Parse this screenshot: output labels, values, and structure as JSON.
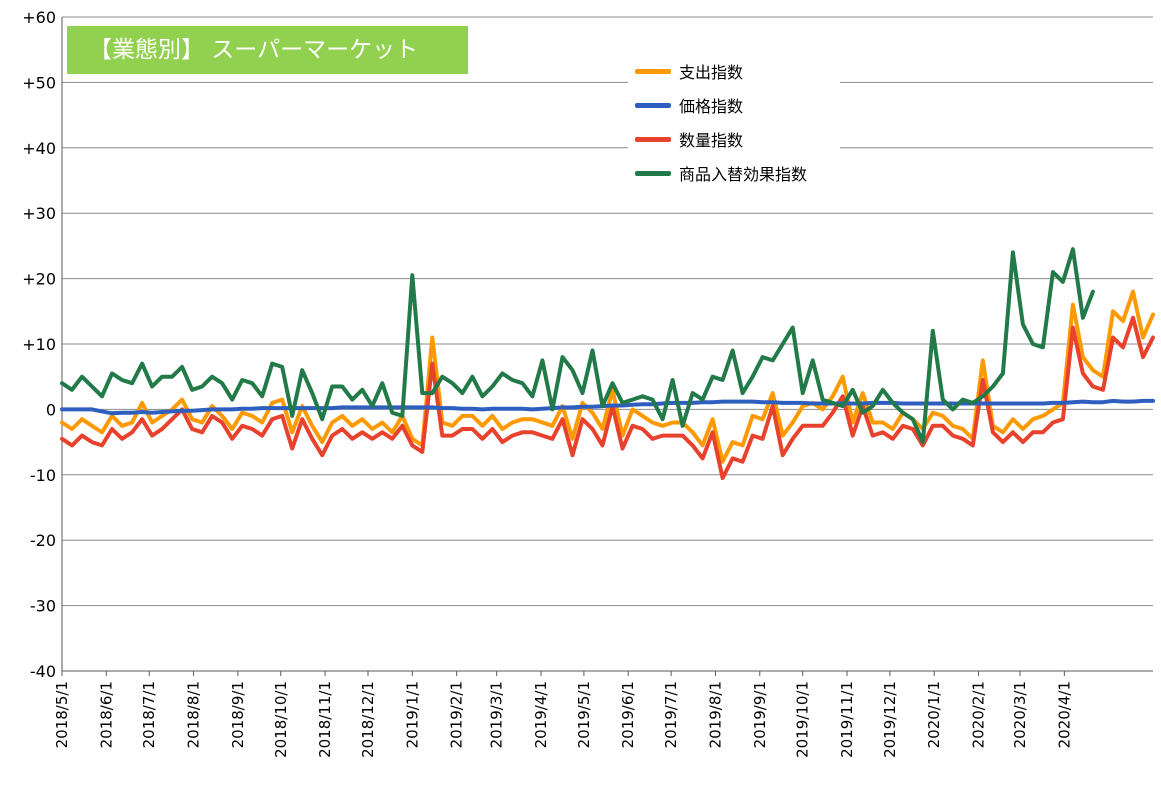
{
  "title": "【業態別】 スーパーマーケット",
  "chart_data": {
    "type": "line",
    "title": "【業態別】 スーパーマーケット",
    "xlabel": "",
    "ylabel": "",
    "ylim": [
      -40,
      60
    ],
    "y_tick_labels": [
      "+60",
      "+50",
      "+40",
      "+30",
      "+20",
      "+10",
      "0",
      "-10",
      "-20",
      "-30",
      "-40"
    ],
    "x_tick_labels": [
      "2018/5/1",
      "2018/6/1",
      "2018/7/1",
      "2018/8/1",
      "2018/9/1",
      "2018/10/1",
      "2018/11/1",
      "2018/12/1",
      "2019/1/1",
      "2019/2/1",
      "2019/3/1",
      "2019/4/1",
      "2019/5/1",
      "2019/6/1",
      "2019/7/1",
      "2019/8/1",
      "2019/9/1",
      "2019/10/1",
      "2019/11/1",
      "2019/12/1",
      "2020/1/1",
      "2020/2/1",
      "2020/3/1",
      "2020/4/1"
    ],
    "x_start": "2018/5/1",
    "x_step_days": 7,
    "grid": "horizontal",
    "legend_position": "top-center",
    "series": [
      {
        "name": "支出指数",
        "color": "#ff9900",
        "values": [
          -2.0,
          -3.0,
          -1.5,
          -2.5,
          -3.5,
          -1.0,
          -2.5,
          -2.0,
          1.0,
          -2.0,
          -1.0,
          0.0,
          1.5,
          -1.5,
          -2.0,
          0.5,
          -1.0,
          -3.0,
          -0.5,
          -1.0,
          -2.0,
          1.0,
          1.5,
          -3.5,
          0.5,
          -2.5,
          -5.0,
          -2.0,
          -1.0,
          -2.5,
          -1.5,
          -3.0,
          -2.0,
          -3.5,
          -1.0,
          -4.5,
          -5.5,
          11.0,
          -2.0,
          -2.5,
          -1.0,
          -1.0,
          -2.5,
          -1.0,
          -3.0,
          -2.0,
          -1.5,
          -1.5,
          -2.0,
          -2.5,
          0.5,
          -4.5,
          1.0,
          -0.5,
          -3.0,
          3.0,
          -4.0,
          0.0,
          -1.0,
          -2.0,
          -2.5,
          -2.0,
          -2.0,
          -3.5,
          -5.5,
          -1.5,
          -8.0,
          -5.0,
          -5.5,
          -1.0,
          -1.5,
          2.5,
          -4.0,
          -2.0,
          0.5,
          1.0,
          0.0,
          2.0,
          5.0,
          -2.0,
          2.5,
          -2.0,
          -2.0,
          -3.0,
          -0.5,
          -1.5,
          -3.0,
          -0.5,
          -1.0,
          -2.5,
          -3.0,
          -4.5,
          7.5,
          -2.5,
          -3.5,
          -1.5,
          -3.0,
          -1.5,
          -1.0,
          0.0,
          1.0,
          16.0,
          8.0,
          6.0,
          5.0,
          15.0,
          13.5,
          18.0,
          11.0,
          14.5
        ]
      },
      {
        "name": "価格指数",
        "color": "#2e5fbf",
        "values": [
          0.0,
          0.0,
          0.0,
          0.0,
          -0.3,
          -0.6,
          -0.5,
          -0.5,
          -0.4,
          -0.5,
          -0.4,
          -0.3,
          -0.2,
          -0.2,
          -0.1,
          0.0,
          0.0,
          0.0,
          0.1,
          0.1,
          0.2,
          0.2,
          0.2,
          0.2,
          0.2,
          0.2,
          0.2,
          0.2,
          0.3,
          0.3,
          0.3,
          0.3,
          0.3,
          0.3,
          0.3,
          0.3,
          0.3,
          0.3,
          0.2,
          0.2,
          0.1,
          0.1,
          0.0,
          0.1,
          0.1,
          0.1,
          0.1,
          0.0,
          0.1,
          0.2,
          0.3,
          0.3,
          0.4,
          0.4,
          0.5,
          0.6,
          0.6,
          0.7,
          0.8,
          0.8,
          0.9,
          1.0,
          1.0,
          1.0,
          1.1,
          1.1,
          1.2,
          1.2,
          1.2,
          1.2,
          1.1,
          1.1,
          1.0,
          1.0,
          1.0,
          0.9,
          0.9,
          0.9,
          0.9,
          0.9,
          0.9,
          1.0,
          1.0,
          1.0,
          0.9,
          0.9,
          0.9,
          0.9,
          0.9,
          0.9,
          0.9,
          0.9,
          0.9,
          0.9,
          0.9,
          0.9,
          0.9,
          0.9,
          0.9,
          1.0,
          1.0,
          1.1,
          1.2,
          1.1,
          1.1,
          1.3,
          1.2,
          1.2,
          1.3,
          1.3
        ]
      },
      {
        "name": "数量指数",
        "color": "#e8412c",
        "values": [
          -4.5,
          -5.5,
          -4.0,
          -5.0,
          -5.5,
          -3.0,
          -4.5,
          -3.5,
          -1.5,
          -4.0,
          -3.0,
          -1.5,
          0.0,
          -3.0,
          -3.5,
          -1.0,
          -2.0,
          -4.5,
          -2.5,
          -3.0,
          -4.0,
          -1.5,
          -1.0,
          -6.0,
          -1.5,
          -4.5,
          -7.0,
          -4.0,
          -3.0,
          -4.5,
          -3.5,
          -4.5,
          -3.5,
          -4.5,
          -2.5,
          -5.5,
          -6.5,
          7.0,
          -4.0,
          -4.0,
          -3.0,
          -3.0,
          -4.5,
          -3.0,
          -5.0,
          -4.0,
          -3.5,
          -3.5,
          -4.0,
          -4.5,
          -1.5,
          -7.0,
          -1.5,
          -3.0,
          -5.5,
          0.5,
          -6.0,
          -2.5,
          -3.0,
          -4.5,
          -4.0,
          -4.0,
          -4.0,
          -5.5,
          -7.5,
          -3.5,
          -10.5,
          -7.5,
          -8.0,
          -4.0,
          -4.5,
          0.5,
          -7.0,
          -4.5,
          -2.5,
          -2.5,
          -2.5,
          -0.5,
          2.0,
          -4.0,
          0.5,
          -4.0,
          -3.5,
          -4.5,
          -2.5,
          -3.0,
          -5.5,
          -2.5,
          -2.5,
          -4.0,
          -4.5,
          -5.5,
          4.5,
          -3.5,
          -5.0,
          -3.5,
          -5.0,
          -3.5,
          -3.5,
          -2.0,
          -1.5,
          12.5,
          5.5,
          3.5,
          3.0,
          11.0,
          9.5,
          14.0,
          8.0,
          11.0
        ]
      },
      {
        "name": "商品入替効果指数",
        "color": "#217a48",
        "values": [
          4.0,
          3.0,
          5.0,
          3.5,
          2.0,
          5.5,
          4.5,
          4.0,
          7.0,
          3.5,
          5.0,
          5.0,
          6.5,
          3.0,
          3.5,
          5.0,
          4.0,
          1.5,
          4.5,
          4.0,
          2.0,
          7.0,
          6.5,
          -1.0,
          6.0,
          2.5,
          -1.5,
          3.5,
          3.5,
          1.5,
          3.0,
          0.5,
          4.0,
          -0.5,
          -1.0,
          20.5,
          2.5,
          2.5,
          5.0,
          4.0,
          2.5,
          5.0,
          2.0,
          3.5,
          5.5,
          4.5,
          4.0,
          2.0,
          7.5,
          0.0,
          8.0,
          6.0,
          2.5,
          9.0,
          0.5,
          4.0,
          1.0,
          1.5,
          2.0,
          1.5,
          -1.5,
          4.5,
          -2.5,
          2.5,
          1.5,
          5.0,
          4.5,
          9.0,
          2.5,
          5.0,
          8.0,
          7.5,
          10.0,
          12.5,
          2.5,
          7.5,
          1.5,
          1.0,
          0.5,
          3.0,
          -0.5,
          0.5,
          3.0,
          1.0,
          -0.5,
          -1.5,
          -5.0,
          12.0,
          1.5,
          0.0,
          1.5,
          1.0,
          2.0,
          3.5,
          5.5,
          24.0,
          13.0,
          10.0,
          9.5,
          21.0,
          19.5,
          24.5,
          14.0,
          18.0
        ]
      }
    ]
  }
}
